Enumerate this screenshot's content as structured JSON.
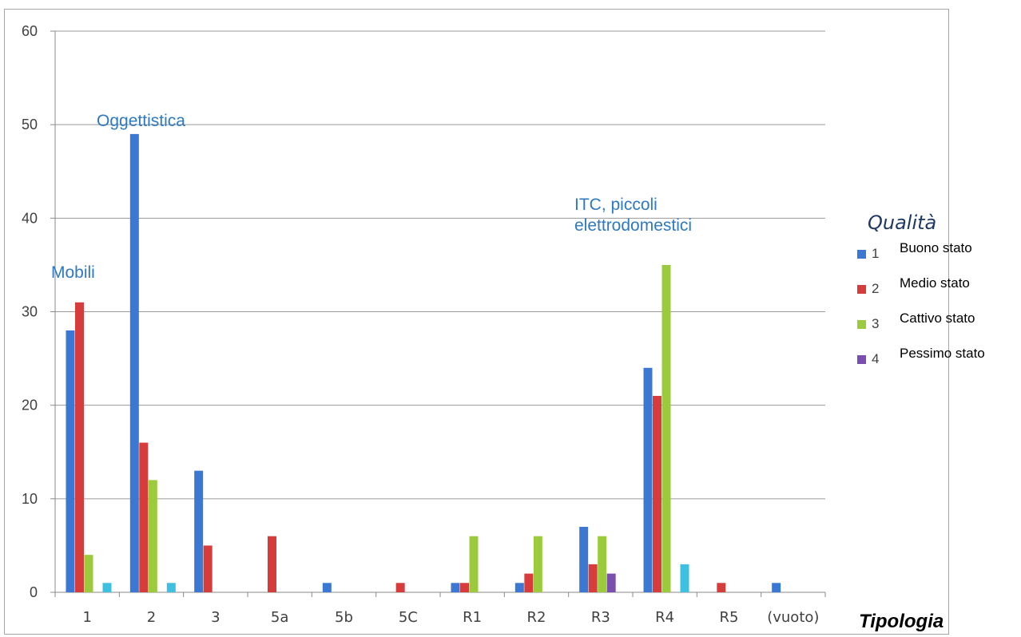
{
  "chart_data": {
    "type": "bar",
    "categories": [
      "1",
      "2",
      "3",
      "5a",
      "5b",
      "5C",
      "R1",
      "R2",
      "R3",
      "R4",
      "R5",
      "(vuoto)"
    ],
    "series": [
      {
        "name": "1",
        "color": "#3b78d4",
        "values": [
          28,
          49,
          13,
          0,
          1,
          0,
          1,
          1,
          7,
          24,
          0,
          1
        ]
      },
      {
        "name": "2",
        "color": "#d63c3c",
        "values": [
          31,
          16,
          5,
          6,
          0,
          1,
          1,
          2,
          3,
          21,
          1,
          0
        ]
      },
      {
        "name": "3",
        "color": "#9bcb3c",
        "values": [
          4,
          12,
          0,
          0,
          0,
          0,
          6,
          6,
          6,
          35,
          0,
          0
        ]
      },
      {
        "name": "4",
        "color": "#7b4fb0",
        "values": [
          0,
          0,
          0,
          0,
          0,
          0,
          0,
          0,
          2,
          0,
          0,
          0
        ]
      },
      {
        "name": "",
        "color": "#3fc0e0",
        "values": [
          1,
          1,
          0,
          0,
          0,
          0,
          0,
          0,
          0,
          3,
          0,
          0
        ]
      }
    ],
    "ylim": [
      0,
      60
    ],
    "yticks": [
      0,
      10,
      20,
      30,
      40,
      50,
      60
    ],
    "grid": true,
    "xlabel": "Tipologia",
    "legend": {
      "title": "Qualità",
      "placement": "right",
      "items": [
        {
          "num": "1",
          "label": "Buono stato"
        },
        {
          "num": "2",
          "label": "Medio stato"
        },
        {
          "num": "3",
          "label": "Cattivo stato"
        },
        {
          "num": "4",
          "label": "Pessimo stato"
        }
      ]
    },
    "annotations": [
      {
        "text": "Mobili",
        "category": "1"
      },
      {
        "text": "Oggettistica",
        "category": "2"
      },
      {
        "text": "ITC, piccoli elettrodomestici",
        "category": "R3"
      }
    ],
    "annotation_color": "#2f79c0"
  }
}
